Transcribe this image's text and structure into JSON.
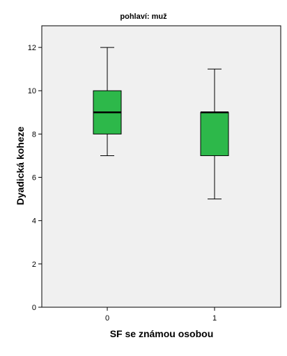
{
  "chart_data": {
    "type": "boxplot",
    "title": "pohlaví: muž",
    "xlabel": "SF se známou osobou",
    "ylabel": "Dyadická koheze",
    "categories": [
      "0",
      "1"
    ],
    "ylim": [
      0,
      13
    ],
    "yticks": [
      0,
      2,
      4,
      6,
      8,
      10,
      12
    ],
    "grid": false,
    "boxes": [
      {
        "category": "0",
        "min": 7,
        "q1": 8,
        "median": 9,
        "q3": 10,
        "max": 12
      },
      {
        "category": "1",
        "min": 5,
        "q1": 7,
        "median": 9,
        "q3": 9,
        "max": 11
      }
    ],
    "colors": {
      "box_fill": "#2db84a",
      "plot_background": "#f0f0f0",
      "line": "#000000"
    }
  }
}
